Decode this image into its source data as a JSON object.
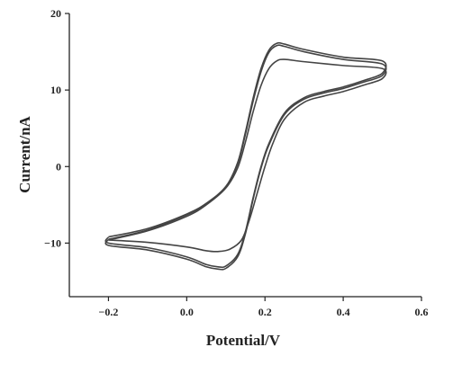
{
  "chart_data": {
    "type": "line",
    "title": "",
    "xlabel": "Potential/V",
    "ylabel": "Current/nA",
    "xlim": [
      -0.3,
      0.6
    ],
    "ylim": [
      -17,
      20
    ],
    "x_ticks": [
      -0.2,
      0.0,
      0.2,
      0.4,
      0.6
    ],
    "x_tick_labels": [
      "−0.2",
      "0.0",
      "0.2",
      "0.4",
      "0.6"
    ],
    "y_ticks": [
      -10,
      0,
      10,
      20
    ],
    "y_tick_labels": [
      "−10",
      "0",
      "10",
      "20"
    ],
    "grid": false,
    "legend": "none",
    "series": [
      {
        "points": [
          [
            -0.2,
            -9.2
          ],
          [
            -0.1,
            -8.1
          ],
          [
            0.0,
            -6.2
          ],
          [
            0.05,
            -4.8
          ],
          [
            0.1,
            -2.6
          ],
          [
            0.13,
            0.5
          ],
          [
            0.15,
            4.5
          ],
          [
            0.17,
            9.0
          ],
          [
            0.19,
            12.8
          ],
          [
            0.21,
            15.2
          ],
          [
            0.23,
            16.1
          ],
          [
            0.25,
            16.0
          ],
          [
            0.3,
            15.3
          ],
          [
            0.4,
            14.3
          ],
          [
            0.5,
            13.8
          ],
          [
            0.5,
            12.2
          ],
          [
            0.45,
            11.2
          ],
          [
            0.4,
            10.4
          ],
          [
            0.35,
            9.8
          ],
          [
            0.3,
            9.0
          ],
          [
            0.25,
            7.0
          ],
          [
            0.21,
            3.0
          ],
          [
            0.19,
            0.0
          ],
          [
            0.17,
            -4.0
          ],
          [
            0.15,
            -8.5
          ],
          [
            0.13,
            -11.5
          ],
          [
            0.1,
            -13.0
          ],
          [
            0.08,
            -13.1
          ],
          [
            0.05,
            -12.8
          ],
          [
            0.0,
            -11.8
          ],
          [
            -0.1,
            -10.6
          ],
          [
            -0.2,
            -10.0
          ],
          [
            -0.2,
            -9.2
          ]
        ]
      },
      {
        "points": [
          [
            -0.2,
            -9.5
          ],
          [
            -0.1,
            -8.3
          ],
          [
            0.0,
            -6.3
          ],
          [
            0.05,
            -4.9
          ],
          [
            0.1,
            -2.7
          ],
          [
            0.13,
            0.3
          ],
          [
            0.15,
            4.2
          ],
          [
            0.17,
            8.6
          ],
          [
            0.19,
            12.4
          ],
          [
            0.21,
            14.9
          ],
          [
            0.23,
            15.8
          ],
          [
            0.25,
            15.7
          ],
          [
            0.3,
            15.0
          ],
          [
            0.4,
            14.0
          ],
          [
            0.5,
            13.4
          ],
          [
            0.5,
            11.9
          ],
          [
            0.45,
            11.0
          ],
          [
            0.4,
            10.2
          ],
          [
            0.35,
            9.6
          ],
          [
            0.3,
            8.8
          ],
          [
            0.25,
            6.8
          ],
          [
            0.21,
            2.8
          ],
          [
            0.19,
            -0.2
          ],
          [
            0.17,
            -4.2
          ],
          [
            0.15,
            -8.8
          ],
          [
            0.13,
            -11.8
          ],
          [
            0.1,
            -13.3
          ],
          [
            0.08,
            -13.4
          ],
          [
            0.05,
            -13.1
          ],
          [
            0.0,
            -12.1
          ],
          [
            -0.1,
            -10.9
          ],
          [
            -0.2,
            -10.3
          ],
          [
            -0.2,
            -9.5
          ]
        ]
      },
      {
        "points": [
          [
            -0.2,
            -9.6
          ],
          [
            -0.1,
            -8.4
          ],
          [
            0.0,
            -6.5
          ],
          [
            0.05,
            -5.0
          ],
          [
            0.1,
            -2.8
          ],
          [
            0.13,
            -0.2
          ],
          [
            0.15,
            3.2
          ],
          [
            0.17,
            7.2
          ],
          [
            0.19,
            10.6
          ],
          [
            0.21,
            12.8
          ],
          [
            0.23,
            13.8
          ],
          [
            0.25,
            14.0
          ],
          [
            0.3,
            13.7
          ],
          [
            0.4,
            13.2
          ],
          [
            0.5,
            12.8
          ],
          [
            0.5,
            11.5
          ],
          [
            0.45,
            10.6
          ],
          [
            0.4,
            9.8
          ],
          [
            0.35,
            9.2
          ],
          [
            0.3,
            8.4
          ],
          [
            0.25,
            6.2
          ],
          [
            0.22,
            3.0
          ],
          [
            0.2,
            0.0
          ],
          [
            0.18,
            -3.5
          ],
          [
            0.16,
            -7.0
          ],
          [
            0.14,
            -9.6
          ],
          [
            0.11,
            -10.8
          ],
          [
            0.08,
            -11.1
          ],
          [
            0.05,
            -11.0
          ],
          [
            0.0,
            -10.5
          ],
          [
            -0.1,
            -9.9
          ],
          [
            -0.2,
            -9.6
          ]
        ]
      }
    ]
  }
}
